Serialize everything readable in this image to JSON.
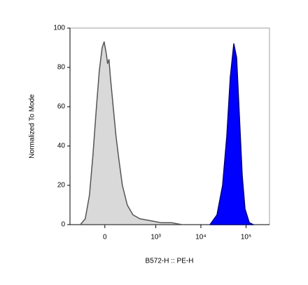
{
  "chart_data": {
    "type": "histogram-overlay",
    "x_label": "B572-H :: PE-H",
    "y_label": "Normalized To Mode",
    "x_scale": "biexponential",
    "xlim": [
      -430,
      330000
    ],
    "ylim": [
      0,
      100
    ],
    "xticks": [
      0,
      {
        "value": 1000,
        "label": "10³"
      },
      {
        "value": 10000,
        "label": "10⁴"
      },
      {
        "value": 100000,
        "label": "10⁵"
      }
    ],
    "yticks": [
      0,
      20,
      40,
      60,
      80,
      100
    ],
    "series": [
      {
        "color": "#d9d9d9",
        "stroke": "#555555",
        "x": [
          -240,
          -176,
          -130,
          -97,
          -66,
          -43,
          -21,
          -5,
          11,
          21,
          32,
          43,
          66,
          90,
          117,
          152,
          211,
          296,
          434,
          756,
          1302,
          2220,
          3810
        ],
        "values": [
          0,
          3,
          15,
          35,
          60,
          78,
          90,
          93,
          87,
          82,
          84,
          75,
          60,
          45,
          33,
          20,
          10,
          5,
          3,
          2,
          1,
          1,
          0
        ]
      },
      {
        "color": "#0000ff",
        "stroke": "#000080",
        "x": [
          15900,
          22700,
          30300,
          37500,
          44800,
          53500,
          61800,
          71300,
          82200,
          94600,
          117600,
          145500
        ],
        "values": [
          0,
          5,
          20,
          45,
          75,
          92,
          85,
          55,
          25,
          8,
          1,
          0
        ]
      }
    ]
  }
}
